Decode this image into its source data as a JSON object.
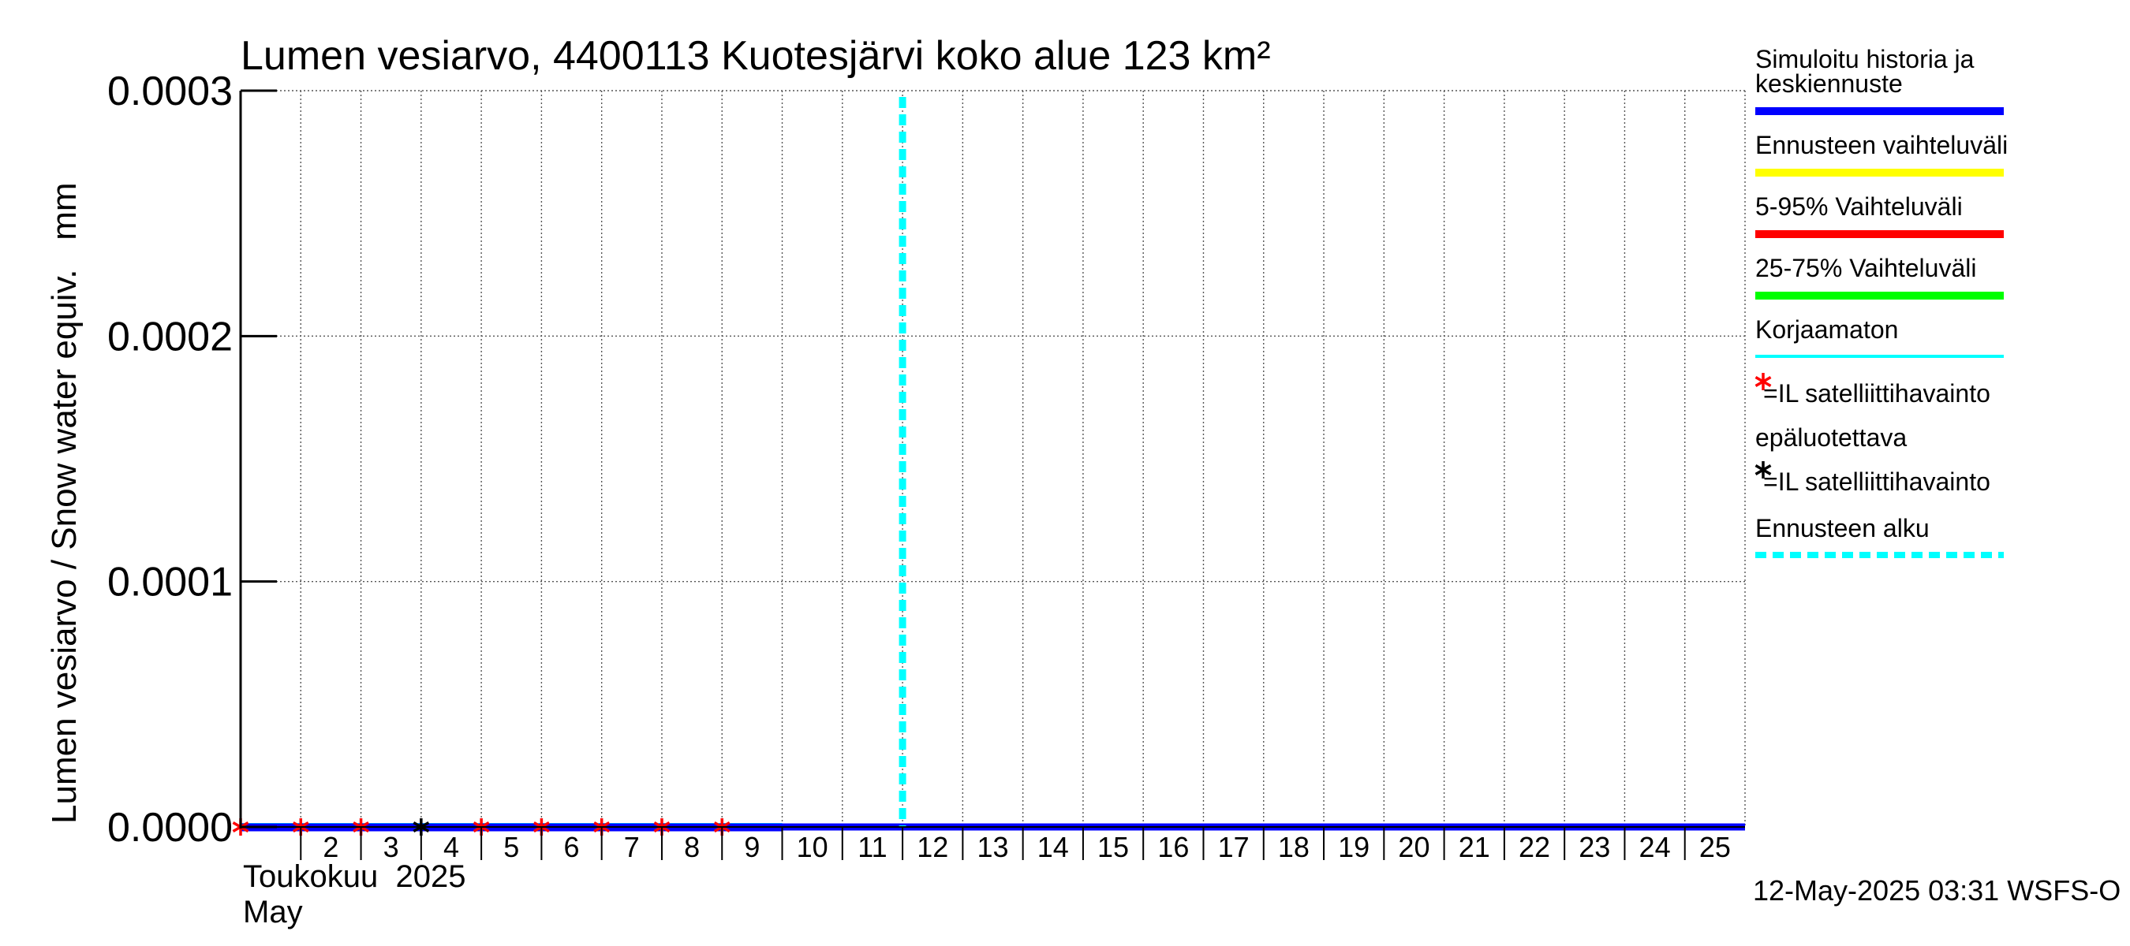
{
  "chart_data": {
    "type": "line",
    "title": "Lumen vesiarvo, 4400113 Kuotesjärvi koko alue 123 km²",
    "ylabel": "Lumen vesiarvo / Snow water equiv.   mm",
    "ylim": [
      0,
      0.0003
    ],
    "yticks": [
      "0.0000",
      "0.0001",
      "0.0002",
      "0.0003"
    ],
    "ytick_values": [
      0,
      0.0001,
      0.0002,
      0.0003
    ],
    "xlim": [
      "2025-05-01",
      "2025-05-25"
    ],
    "x_day_start": 1,
    "x_day_end": 25,
    "xtick_days": [
      2,
      3,
      4,
      5,
      6,
      7,
      8,
      9,
      10,
      11,
      12,
      13,
      14,
      15,
      16,
      17,
      18,
      19,
      20,
      21,
      22,
      23,
      24,
      25
    ],
    "xlabel_month_fi": "Toukokuu  2025",
    "xlabel_month_en": "May",
    "grid": true,
    "forecast_start": "2025-05-12",
    "forecast_start_day": 12,
    "series": [
      {
        "name": "Simuloitu historia ja keskiennuste",
        "color": "#0000ff",
        "x_start": "2025-05-01",
        "x_end": "2025-05-25",
        "value": 0.0
      },
      {
        "name": "Korjaamaton",
        "color": "#00ffff",
        "x_start": "2025-05-01",
        "x_end": "2025-05-10",
        "value": 0.0
      }
    ],
    "observations_reliable": {
      "color": "#ff0000",
      "dates": [
        "2025-05-01",
        "2025-05-02",
        "2025-05-03",
        "2025-05-05",
        "2025-05-06",
        "2025-05-07",
        "2025-05-08",
        "2025-05-09"
      ],
      "value": 0.0
    },
    "observations_unreliable": {
      "color": "#000000",
      "dates": [
        "2025-05-04"
      ],
      "value": 0.0
    },
    "legend": [
      {
        "label": "Simuloitu historia ja keskiennuste",
        "style": "line",
        "color": "#0000ff"
      },
      {
        "label": "Ennusteen vaihteluväli",
        "style": "line",
        "color": "#ffff00"
      },
      {
        "label": "5-95% Vaihteluväli",
        "style": "line",
        "color": "#ff0000"
      },
      {
        "label": "25-75% Vaihteluväli",
        "style": "line",
        "color": "#00ff00"
      },
      {
        "label": "Korjaamaton",
        "style": "thin",
        "color": "#00ffff"
      },
      {
        "label": "=IL satelliittihavainto",
        "style": "star",
        "color": "#ff0000"
      },
      {
        "label": "epäluotettava",
        "style": "text",
        "color": "#000000"
      },
      {
        "label": "=IL satelliittihavainto",
        "style": "star",
        "color": "#000000"
      },
      {
        "label": "Ennusteen alku",
        "style": "dashed",
        "color": "#00ffff"
      }
    ],
    "legend_position": "right",
    "footer": "12-May-2025 03:31 WSFS-O"
  }
}
